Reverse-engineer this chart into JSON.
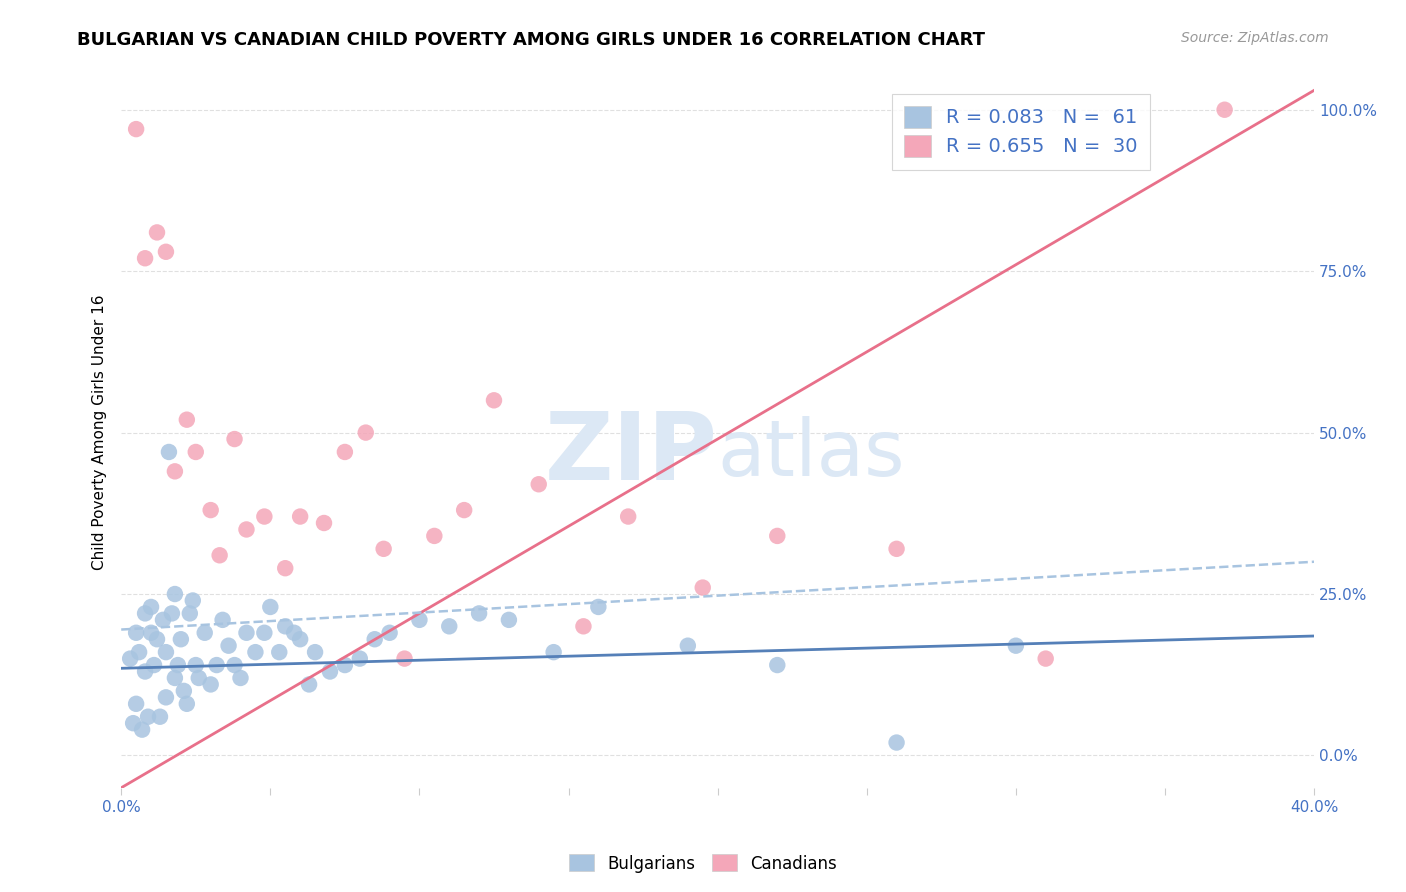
{
  "title": "BULGARIAN VS CANADIAN CHILD POVERTY AMONG GIRLS UNDER 16 CORRELATION CHART",
  "source": "Source: ZipAtlas.com",
  "ylabel": "Child Poverty Among Girls Under 16",
  "xmin": 0.0,
  "xmax": 40.0,
  "ymin": -5.0,
  "ymax": 105.0,
  "yticks_right": [
    0.0,
    25.0,
    50.0,
    75.0,
    100.0
  ],
  "ytick_labels_right": [
    "0.0%",
    "25.0%",
    "50.0%",
    "75.0%",
    "100.0%"
  ],
  "legend_r1": "R = 0.083",
  "legend_n1": "N =  61",
  "legend_r2": "R = 0.655",
  "legend_n2": "N =  30",
  "color_bulgarian": "#a8c4e0",
  "color_canadian": "#f4a7b9",
  "color_trendline_blue": "#5580b8",
  "color_trendline_pink": "#e8708a",
  "color_dashed": "#a8c4e0",
  "color_text_blue": "#4472c4",
  "watermark_color": "#dce8f5",
  "bg_color": "#ffffff",
  "grid_color": "#e0e0e0",
  "bulgarians_x": [
    0.3,
    0.4,
    0.5,
    0.5,
    0.6,
    0.7,
    0.8,
    0.8,
    0.9,
    1.0,
    1.0,
    1.1,
    1.2,
    1.3,
    1.4,
    1.5,
    1.5,
    1.6,
    1.7,
    1.8,
    1.8,
    1.9,
    2.0,
    2.1,
    2.2,
    2.3,
    2.4,
    2.5,
    2.6,
    2.8,
    3.0,
    3.2,
    3.4,
    3.6,
    3.8,
    4.0,
    4.2,
    4.5,
    4.8,
    5.0,
    5.3,
    5.5,
    5.8,
    6.0,
    6.3,
    6.5,
    7.0,
    7.5,
    8.0,
    8.5,
    9.0,
    10.0,
    11.0,
    12.0,
    13.0,
    14.5,
    16.0,
    19.0,
    22.0,
    26.0,
    30.0
  ],
  "bulgarians_y": [
    15.0,
    5.0,
    19.0,
    8.0,
    16.0,
    4.0,
    13.0,
    22.0,
    6.0,
    19.0,
    23.0,
    14.0,
    18.0,
    6.0,
    21.0,
    9.0,
    16.0,
    47.0,
    22.0,
    12.0,
    25.0,
    14.0,
    18.0,
    10.0,
    8.0,
    22.0,
    24.0,
    14.0,
    12.0,
    19.0,
    11.0,
    14.0,
    21.0,
    17.0,
    14.0,
    12.0,
    19.0,
    16.0,
    19.0,
    23.0,
    16.0,
    20.0,
    19.0,
    18.0,
    11.0,
    16.0,
    13.0,
    14.0,
    15.0,
    18.0,
    19.0,
    21.0,
    20.0,
    22.0,
    21.0,
    16.0,
    23.0,
    17.0,
    14.0,
    2.0,
    17.0
  ],
  "canadians_x": [
    0.5,
    0.8,
    1.2,
    1.5,
    1.8,
    2.2,
    2.5,
    3.0,
    3.3,
    3.8,
    4.2,
    4.8,
    5.5,
    6.0,
    6.8,
    7.5,
    8.2,
    8.8,
    9.5,
    10.5,
    11.5,
    12.5,
    14.0,
    15.5,
    17.0,
    19.5,
    22.0,
    26.0,
    31.0,
    37.0
  ],
  "canadians_y": [
    97.0,
    77.0,
    81.0,
    78.0,
    44.0,
    52.0,
    47.0,
    38.0,
    31.0,
    49.0,
    35.0,
    37.0,
    29.0,
    37.0,
    36.0,
    47.0,
    50.0,
    32.0,
    15.0,
    34.0,
    38.0,
    55.0,
    42.0,
    20.0,
    37.0,
    26.0,
    34.0,
    32.0,
    15.0,
    100.0
  ],
  "canadian_trendline_x0": 0.0,
  "canadian_trendline_y0": -5.0,
  "canadian_trendline_x1": 40.0,
  "canadian_trendline_y1": 103.0,
  "bulgarian_trendline_x0": 0.0,
  "bulgarian_trendline_y0": 13.5,
  "bulgarian_trendline_x1": 40.0,
  "bulgarian_trendline_y1": 18.5,
  "dashed_trendline_x0": 0.0,
  "dashed_trendline_y0": 19.5,
  "dashed_trendline_x1": 40.0,
  "dashed_trendline_y1": 30.0
}
